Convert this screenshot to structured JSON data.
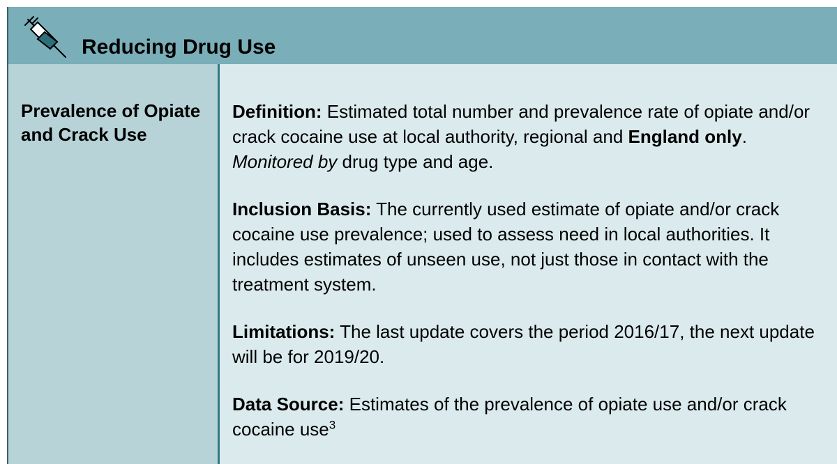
{
  "header": {
    "title": "Reducing Drug Use"
  },
  "row": {
    "label": "Prevalence of Opiate and Crack Use",
    "sections": [
      {
        "heading": "Definition:",
        "runs": [
          {
            "text": " Estimated total number and prevalence rate of opiate and/or crack cocaine use at local authority, regional and ",
            "style": "normal"
          },
          {
            "text": "England only",
            "style": "bold"
          },
          {
            "text": ". ",
            "style": "normal"
          },
          {
            "text": "Monitored by",
            "style": "italic"
          },
          {
            "text": " drug type and age.",
            "style": "normal"
          }
        ]
      },
      {
        "heading": "Inclusion Basis:",
        "runs": [
          {
            "text": " The currently used estimate of opiate and/or crack cocaine use prevalence; used to assess need in local authorities. It includes estimates of unseen use, not just those in contact with the treatment system.",
            "style": "normal"
          }
        ]
      },
      {
        "heading": "Limitations:",
        "runs": [
          {
            "text": " The last update covers the period 2016/17, the next update will be for 2019/20.",
            "style": "normal"
          }
        ]
      },
      {
        "heading": "Data Source:",
        "runs": [
          {
            "text": " Estimates of the prevalence of opiate use and/or crack cocaine use",
            "style": "normal"
          },
          {
            "text": "3",
            "style": "superscript"
          }
        ]
      }
    ]
  }
}
